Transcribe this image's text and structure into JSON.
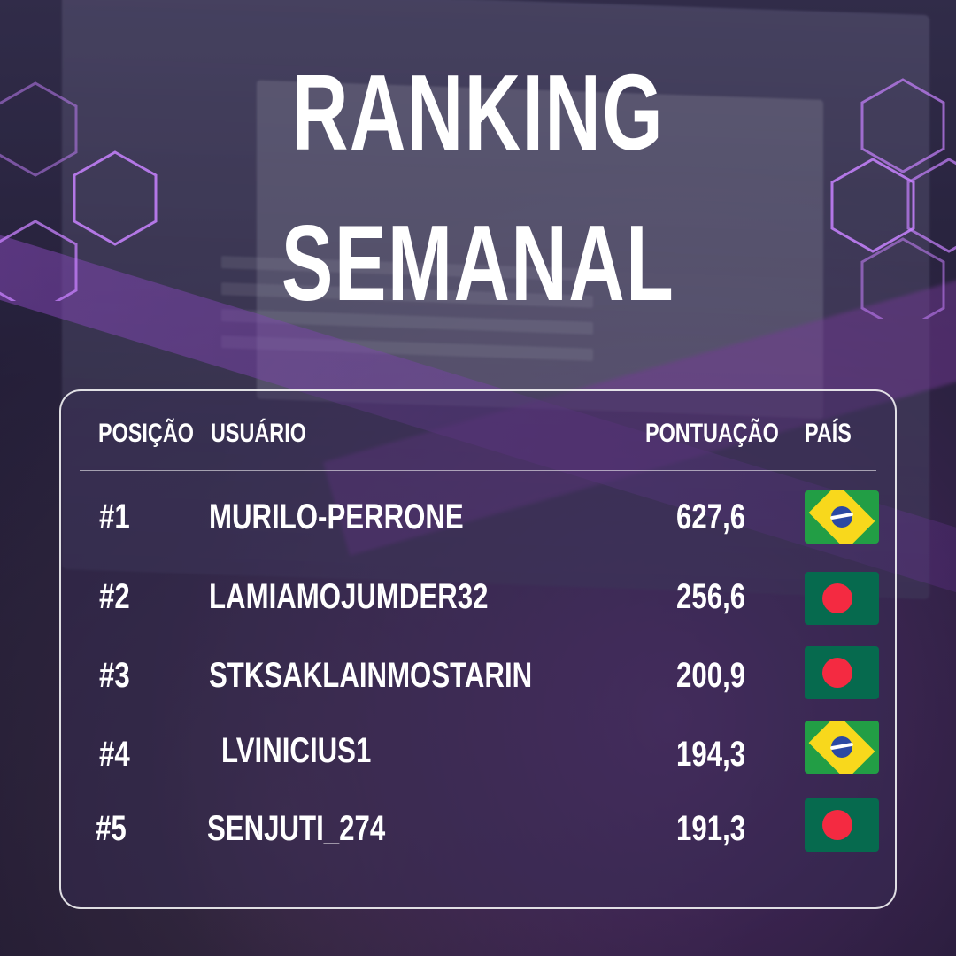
{
  "title": {
    "line1": "RANKING",
    "line2": "SEMANAL"
  },
  "table": {
    "headers": {
      "position": "POSIÇÃO",
      "user": "USUÁRIO",
      "score": "PONTUAÇÃO",
      "country": "PAÍS"
    },
    "rows": [
      {
        "position": "#1",
        "user": "MURILO-PERRONE",
        "score": "627,6",
        "country_icon": "brazil-flag-icon"
      },
      {
        "position": "#2",
        "user": "LAMIAMOJUMDER32",
        "score": "256,6",
        "country_icon": "bangladesh-flag-icon"
      },
      {
        "position": "#3",
        "user": "STKSAKLAINMOSTARIN",
        "score": "200,9",
        "country_icon": "bangladesh-flag-icon"
      },
      {
        "position": "#4",
        "user": "LVINICIUS1",
        "score": "194,3",
        "country_icon": "brazil-flag-icon"
      },
      {
        "position": "#5",
        "user": "SENJUTI_274",
        "score": "191,3",
        "country_icon": "bangladesh-flag-icon"
      }
    ]
  },
  "colors": {
    "accent": "#a04ee0",
    "text": "#ffffff",
    "brazil_green": "#229e45",
    "brazil_yellow": "#f8d81c",
    "bangladesh_green": "#066a4e",
    "bangladesh_red": "#f42a41"
  }
}
